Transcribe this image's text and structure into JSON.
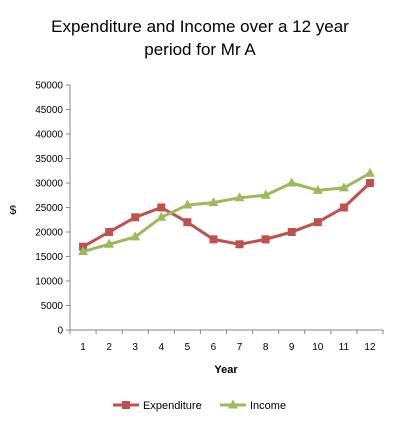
{
  "chart_data": {
    "type": "line",
    "title_lines": [
      "Expenditure and Income over a 12 year",
      "period for Mr A"
    ],
    "xlabel": "Year",
    "ylabel": "$",
    "x": [
      1,
      2,
      3,
      4,
      5,
      6,
      7,
      8,
      9,
      10,
      11,
      12
    ],
    "ylim": [
      0,
      50000
    ],
    "yticks": [
      0,
      5000,
      10000,
      15000,
      20000,
      25000,
      30000,
      35000,
      40000,
      45000,
      50000
    ],
    "grid": false,
    "legend_position": "bottom",
    "series": [
      {
        "name": "Expenditure",
        "color": "#C0504D",
        "marker": "square",
        "values": [
          17000,
          20000,
          23000,
          25000,
          22000,
          18500,
          17500,
          18500,
          20000,
          22000,
          25000,
          30000
        ]
      },
      {
        "name": "Income",
        "color": "#9BBB59",
        "marker": "triangle",
        "values": [
          16000,
          17500,
          19000,
          23000,
          25500,
          26000,
          27000,
          27500,
          30000,
          28500,
          29000,
          32000
        ]
      }
    ]
  }
}
